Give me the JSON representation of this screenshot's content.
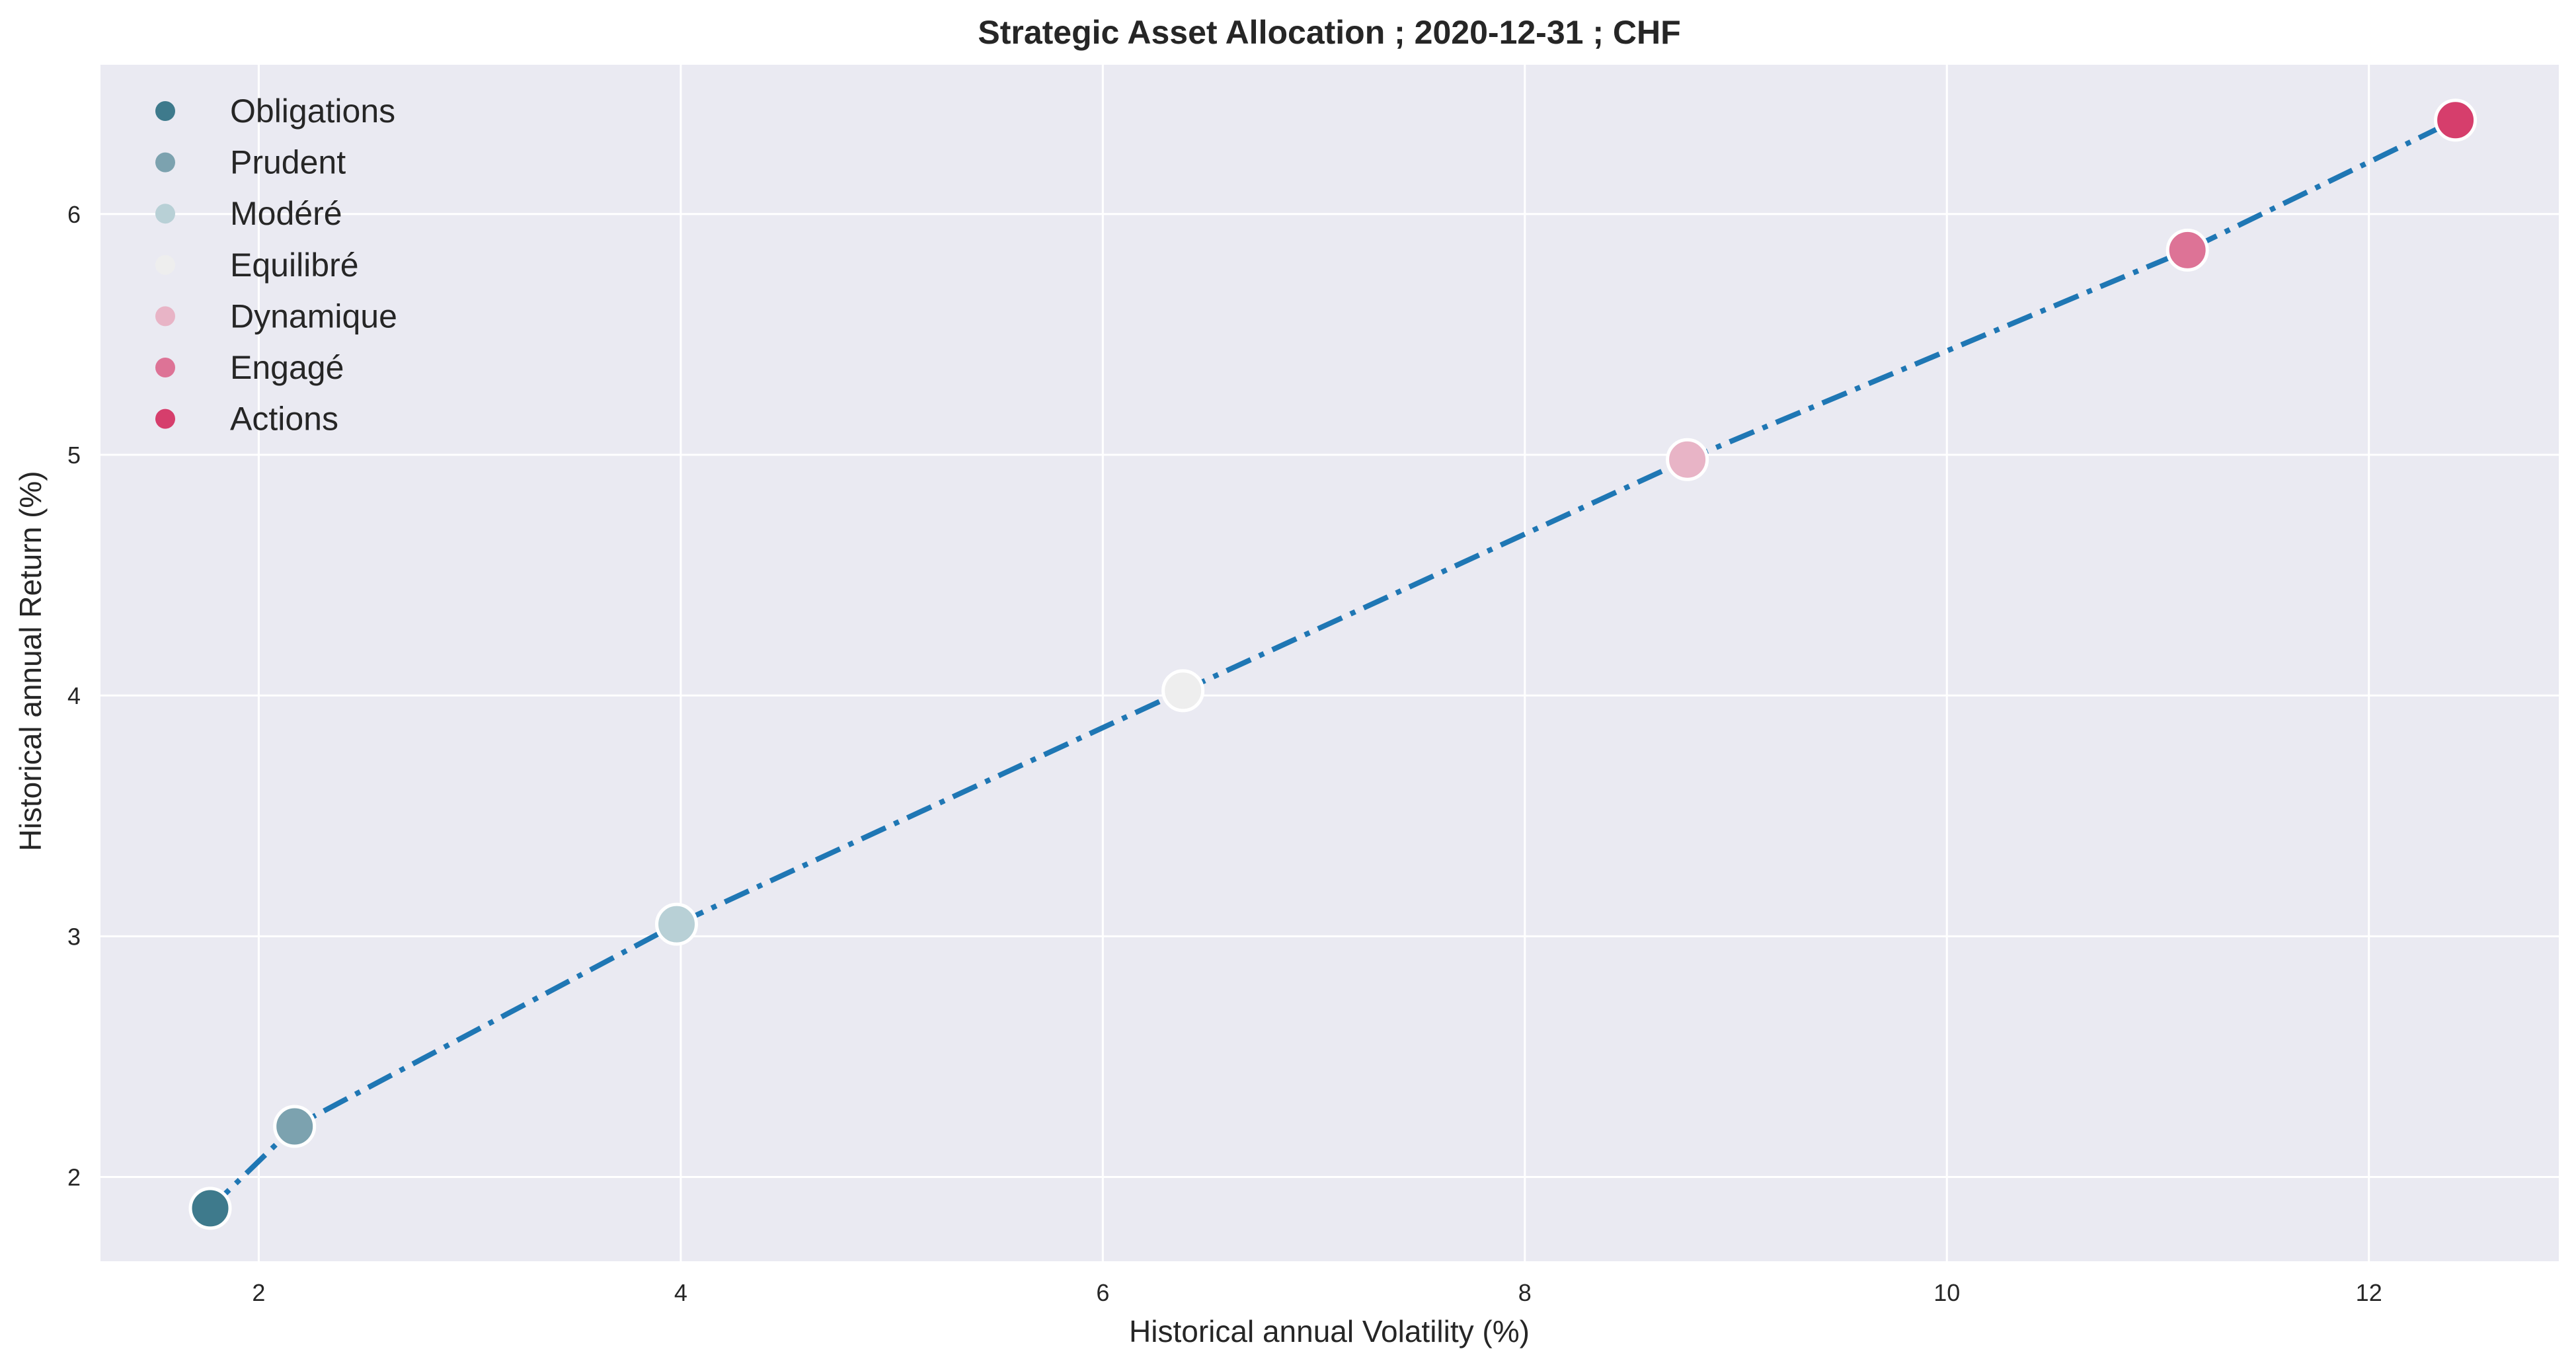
{
  "chart_data": {
    "type": "scatter",
    "title": "Strategic Asset Allocation ; 2020-12-31 ; CHF",
    "xlabel": "Historical annual Volatility (%)",
    "ylabel": "Historical annual Return (%)",
    "xlim": [
      1.25,
      12.9
    ],
    "ylim": [
      1.65,
      6.62
    ],
    "xticks": [
      2,
      4,
      6,
      8,
      10,
      12
    ],
    "yticks": [
      2,
      3,
      4,
      5,
      6
    ],
    "grid": true,
    "legend_position": "top-left",
    "background_color": "#eaeaf2",
    "line": {
      "style": "dash-dot",
      "color": "#1f77b4"
    },
    "series": [
      {
        "name": "Obligations",
        "x": 1.77,
        "y": 1.87,
        "color": "#3e7a8c"
      },
      {
        "name": "Prudent",
        "x": 2.17,
        "y": 2.21,
        "color": "#7ca2af"
      },
      {
        "name": "Modéré",
        "x": 3.98,
        "y": 3.05,
        "color": "#b8d0d6"
      },
      {
        "name": "Equilibré",
        "x": 6.38,
        "y": 4.02,
        "color": "#eeeeee"
      },
      {
        "name": "Dynamique",
        "x": 8.77,
        "y": 4.98,
        "color": "#e8b4c6"
      },
      {
        "name": "Engagé",
        "x": 11.14,
        "y": 5.85,
        "color": "#dd7396"
      },
      {
        "name": "Actions",
        "x": 12.41,
        "y": 6.39,
        "color": "#d63e6c"
      }
    ]
  }
}
